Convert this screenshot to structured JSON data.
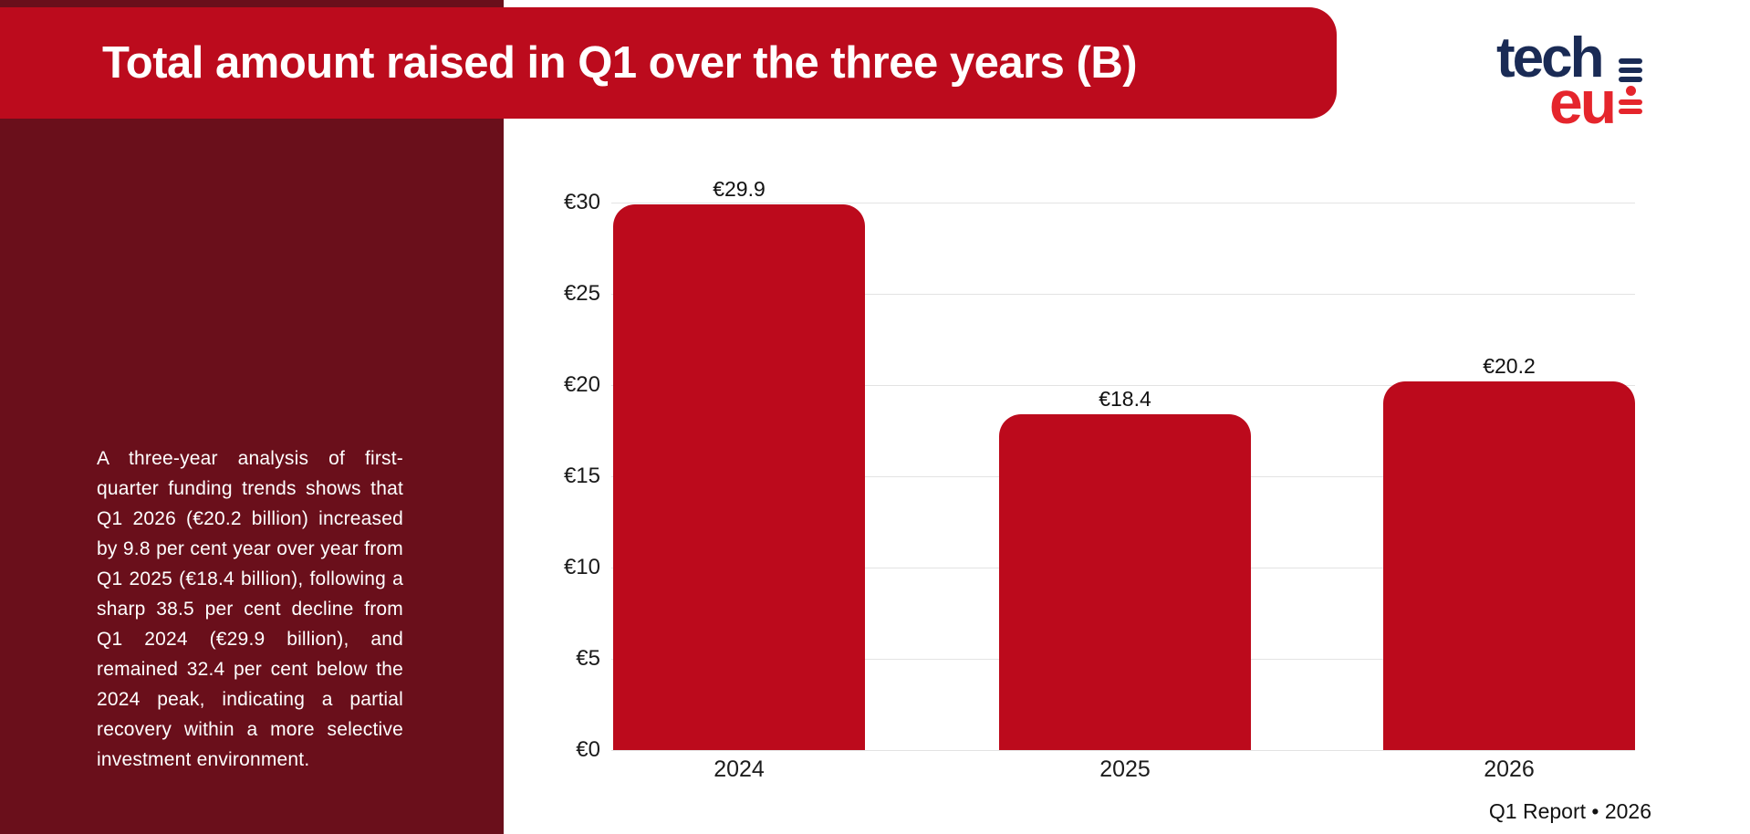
{
  "header": {
    "title": "Total amount raised in Q1 over the three years (B)"
  },
  "logo": {
    "line1": "tech",
    "line2": "eu"
  },
  "sidebar": {
    "paragraph": "A three-year analysis of first-quarter funding trends shows that Q1 2026 (€20.2 billion) increased by 9.8 per cent year over year from Q1 2025 (€18.4 billion), following a sharp 38.5 per cent decline from Q1 2024 (€29.9 billion), and remained 32.4 per cent below the 2024 peak, indicating a partial recovery within a more selective investment environment."
  },
  "footer": {
    "text": "Q1 Report • 2026"
  },
  "colors": {
    "brand_red": "#bc0b1d",
    "bar_red": "#bc0a1c",
    "sidebar_maroon": "#6a0f1b",
    "logo_navy": "#1a2b55",
    "logo_red": "#e5252c",
    "gridline_gray": "#e3e3e3",
    "label_dark": "#1a1a1a",
    "white": "#ffffff"
  },
  "chart_data": {
    "type": "bar",
    "title": "Total amount raised in Q1 over the three years (B)",
    "categories": [
      "2024",
      "2025",
      "2026"
    ],
    "values": [
      29.9,
      18.4,
      20.2
    ],
    "value_labels": [
      "€29.9",
      "€18.4",
      "€20.2"
    ],
    "currency": "EUR",
    "unit": "billion",
    "xlabel": "",
    "ylabel": "",
    "ylim": [
      0,
      30
    ],
    "yticks": [
      0,
      5,
      10,
      15,
      20,
      25,
      30
    ],
    "ytick_labels": [
      "€0",
      "€5",
      "€10",
      "€15",
      "€20",
      "€25",
      "€30"
    ],
    "grid": true,
    "legend": false,
    "bar_color": "#bc0a1c"
  }
}
